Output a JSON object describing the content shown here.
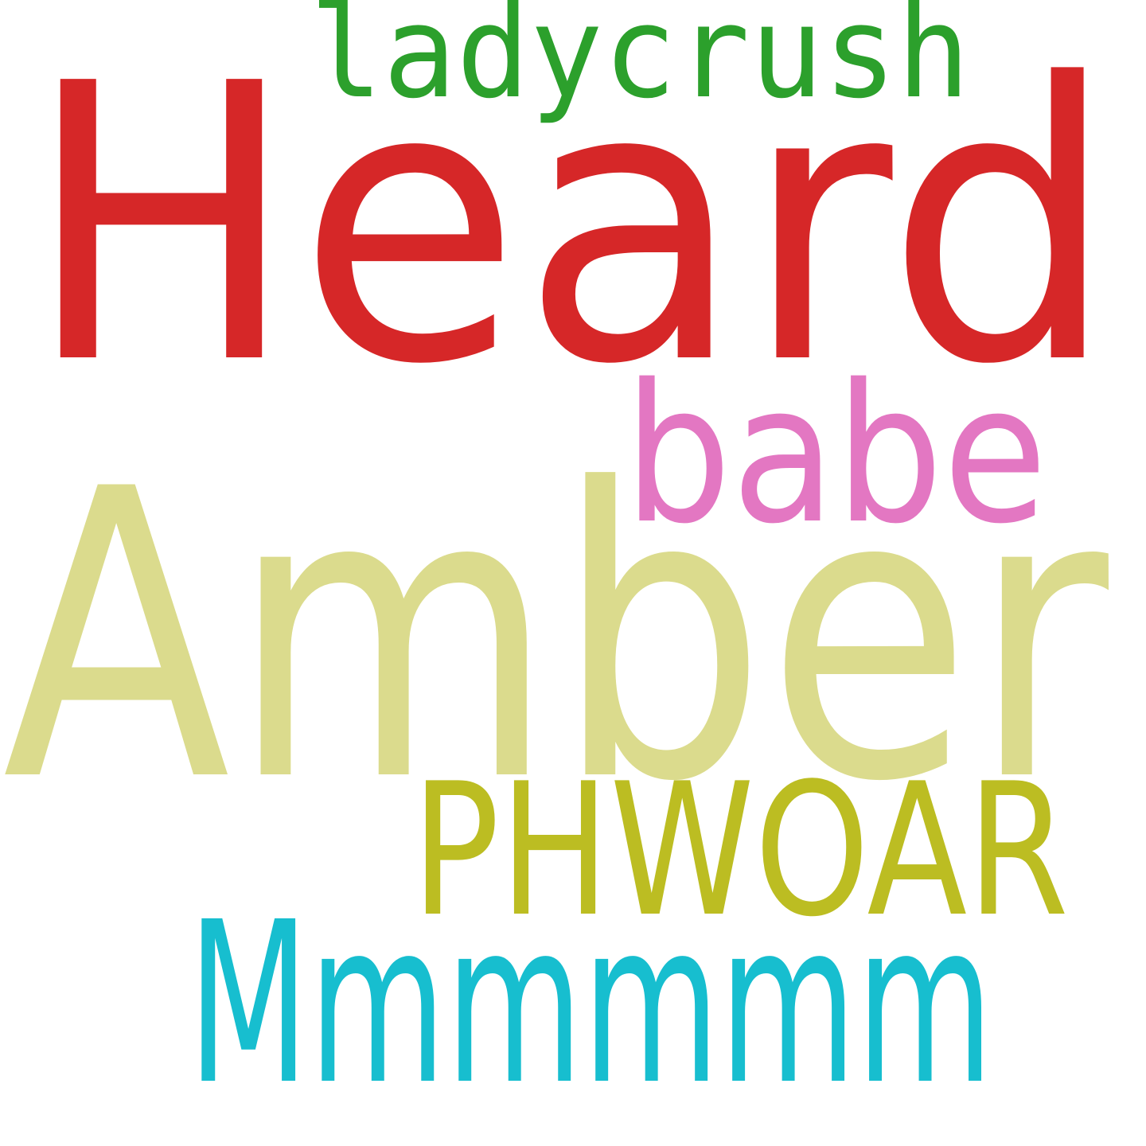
{
  "words": [
    {
      "text": "Heard",
      "color": "#d62728"
    },
    {
      "text": "Amber",
      "color": "#dbdb8d"
    },
    {
      "text": "ladycrush",
      "color": "#2ca02c"
    },
    {
      "text": "babe",
      "color": "#e377c2"
    },
    {
      "text": "PHWOAR",
      "color": "#bcbd22"
    },
    {
      "text": "Mmmmmm",
      "color": "#17becf"
    }
  ]
}
